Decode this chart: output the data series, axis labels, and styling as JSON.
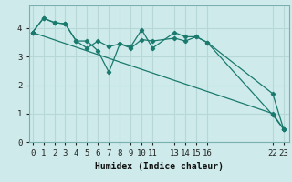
{
  "xlabel": "Humidex (Indice chaleur)",
  "ylabel": "",
  "bg_color": "#ceeaea",
  "grid_color": "#b8d8d8",
  "line_color": "#1a7a6e",
  "xlim": [
    -0.3,
    23.5
  ],
  "ylim": [
    0,
    4.8
  ],
  "xticks": [
    0,
    1,
    2,
    3,
    4,
    5,
    6,
    7,
    8,
    9,
    10,
    11,
    13,
    14,
    15,
    16,
    22,
    23
  ],
  "yticks": [
    0,
    1,
    2,
    3,
    4
  ],
  "series": [
    {
      "x": [
        0,
        1,
        2,
        3,
        4,
        5,
        6,
        7,
        8,
        9,
        10,
        11,
        13,
        14,
        15,
        16,
        22,
        23
      ],
      "y": [
        3.85,
        4.35,
        4.2,
        4.15,
        3.55,
        3.55,
        3.2,
        2.45,
        3.45,
        3.35,
        3.95,
        3.3,
        3.85,
        3.7,
        3.7,
        3.5,
        0.95,
        0.45
      ]
    },
    {
      "x": [
        0,
        1,
        2,
        3,
        4,
        5,
        6,
        7,
        8,
        9,
        10,
        11,
        13,
        14,
        15,
        16,
        22,
        23
      ],
      "y": [
        3.85,
        4.35,
        4.2,
        4.15,
        3.55,
        3.3,
        3.55,
        3.35,
        3.45,
        3.3,
        3.6,
        3.55,
        3.65,
        3.55,
        3.7,
        3.5,
        1.7,
        0.45
      ]
    },
    {
      "x": [
        0,
        22,
        23
      ],
      "y": [
        3.85,
        1.0,
        0.45
      ]
    }
  ]
}
